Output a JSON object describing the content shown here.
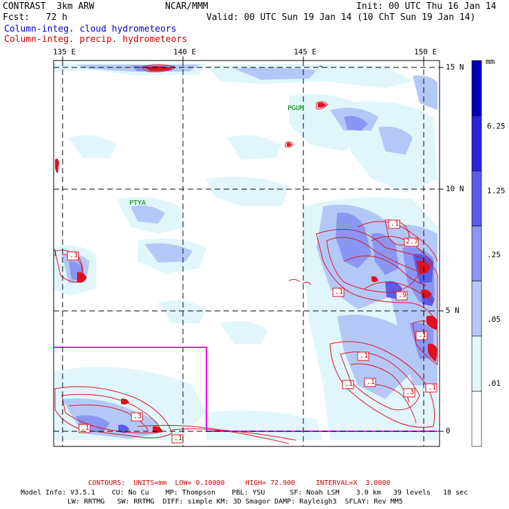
{
  "header": {
    "model": "CONTRAST  3km ARW",
    "center": "NCAR/MMM",
    "init": "Init: 00 UTC Thu 16 Jan 14",
    "fcst": "Fcst:   72 h",
    "valid": "Valid: 00 UTC Sun 19 Jan 14 (10 ChT Sun 19 Jan 14)",
    "field1": "Column-integ. cloud hydrometeors",
    "field2": "Column-integ. precip. hydrometeors"
  },
  "map": {
    "lon_labels": [
      "135 E",
      "140 E",
      "145 E",
      "150 E"
    ],
    "lat_labels": [
      "15 N",
      "10 N",
      "5 N",
      "0"
    ],
    "stations": [
      "PGUM",
      "PTYA"
    ],
    "contour_labels": [
      ".1",
      "2.7",
      ".1",
      ".9",
      ".1",
      ".1",
      ".1",
      ".1",
      ".3",
      ".1",
      ".3",
      ".3",
      ".1",
      ".1"
    ]
  },
  "colorbar": {
    "unit": "mm",
    "levels": [
      "6.25",
      "1.25",
      ".25",
      ".05",
      ".01"
    ],
    "colors": [
      "#ffffff",
      "#e0f6fb",
      "#b4c8f7",
      "#8a96f2",
      "#5a5cec",
      "#2a24dc",
      "#0000b8"
    ]
  },
  "footer": {
    "contours": "CONTOURS:  UNITS=mm  LOW= 0.10000     HIGH= 72.900     INTERVAL=X  3.0000",
    "model_info_1": "Model Info: V3.5.1    CU: No Cu    MP: Thompson    PBL: YSU      SF: Noah LSM    3.0 km   39 levels   18 sec",
    "model_info_2": "LW: RRTMG   SW: RRTMG  DIFF: simple KM: 3D Smagor DAMP: Rayleigh3  SFLAY: Rev MM5"
  }
}
